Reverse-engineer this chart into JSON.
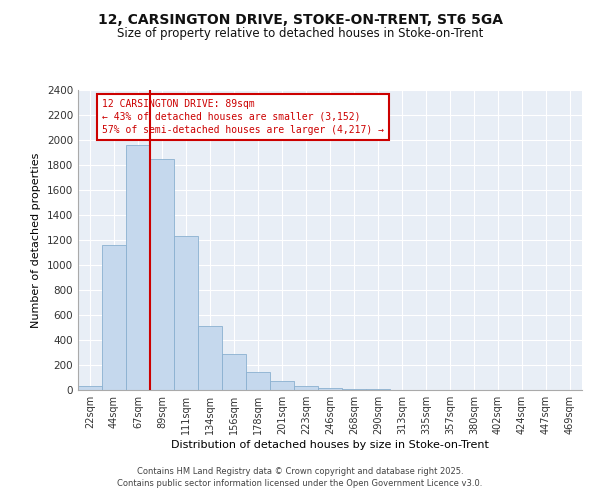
{
  "title_line1": "12, CARSINGTON DRIVE, STOKE-ON-TRENT, ST6 5GA",
  "title_line2": "Size of property relative to detached houses in Stoke-on-Trent",
  "xlabel": "Distribution of detached houses by size in Stoke-on-Trent",
  "ylabel": "Number of detached properties",
  "categories": [
    "22sqm",
    "44sqm",
    "67sqm",
    "89sqm",
    "111sqm",
    "134sqm",
    "156sqm",
    "178sqm",
    "201sqm",
    "223sqm",
    "246sqm",
    "268sqm",
    "290sqm",
    "313sqm",
    "335sqm",
    "357sqm",
    "380sqm",
    "402sqm",
    "424sqm",
    "447sqm",
    "469sqm"
  ],
  "values": [
    30,
    1160,
    1960,
    1850,
    1235,
    510,
    285,
    145,
    75,
    30,
    15,
    10,
    5,
    2,
    2,
    1,
    1,
    0,
    0,
    0,
    0
  ],
  "bar_color": "#c5d8ed",
  "bar_edge_color": "#8ab0d0",
  "property_size_bin_index": 3,
  "annotation_title": "12 CARSINGTON DRIVE: 89sqm",
  "annotation_line2": "← 43% of detached houses are smaller (3,152)",
  "annotation_line3": "57% of semi-detached houses are larger (4,217) →",
  "annotation_color": "#cc0000",
  "vline_color": "#cc0000",
  "ylim": [
    0,
    2400
  ],
  "yticks": [
    0,
    200,
    400,
    600,
    800,
    1000,
    1200,
    1400,
    1600,
    1800,
    2000,
    2200,
    2400
  ],
  "bg_color": "#e8eef6",
  "grid_color": "#ffffff",
  "footer_line1": "Contains HM Land Registry data © Crown copyright and database right 2025.",
  "footer_line2": "Contains public sector information licensed under the Open Government Licence v3.0."
}
